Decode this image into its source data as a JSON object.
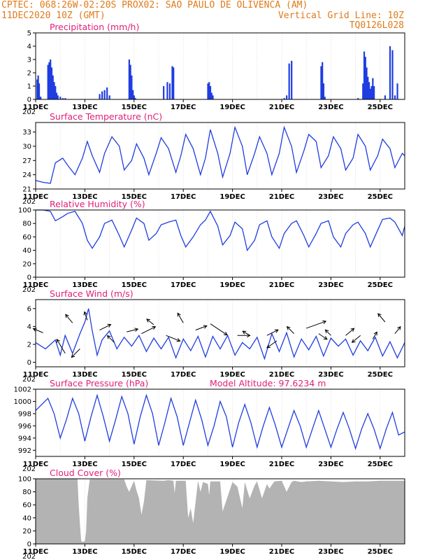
{
  "header": {
    "left_line1": "CPTEC:   068:26W-02:20S   PROX02: SAO PAULO DE OLIVENCA (AM)",
    "left_line2": "11DEC2020 10Z (GMT)",
    "right_line2": "Vertical Grid Line: 10Z",
    "right_line3": "TQ0126L028"
  },
  "x_axis": {
    "ticks": [
      "11DEC",
      "13DEC",
      "15DEC",
      "17DEC",
      "19DEC",
      "21DEC",
      "23DEC",
      "25DEC"
    ],
    "range_days": [
      0,
      15
    ],
    "year_fragment": "202"
  },
  "colors": {
    "line": "#1f3de0",
    "bar": "#1f3de0",
    "cloud": "#b3b3b3",
    "title": "#e0207a",
    "header": "#e07a1a"
  },
  "chart_data": [
    {
      "id": "precip",
      "type": "bar",
      "title": "Precipitation (mm/h)",
      "annotation": "",
      "ylim": [
        0,
        5
      ],
      "yticks": [
        "0",
        "1",
        "2",
        "3",
        "4",
        "5"
      ],
      "x_unit": "days since 11DEC2020 10Z",
      "x": [
        0.06,
        0.1,
        0.14,
        0.2,
        0.5,
        0.55,
        0.6,
        0.65,
        0.7,
        0.75,
        0.8,
        0.85,
        0.9,
        1.0,
        1.1,
        1.2,
        2.6,
        2.7,
        2.8,
        2.9,
        3.0,
        3.8,
        3.85,
        3.9,
        3.95,
        4.0,
        4.05,
        5.2,
        5.35,
        5.45,
        5.55,
        5.6,
        7.0,
        7.05,
        7.1,
        7.15,
        7.2,
        10.1,
        10.2,
        10.3,
        10.4,
        11.6,
        11.65,
        11.7,
        11.75,
        13.1,
        13.3,
        13.35,
        13.4,
        13.45,
        13.5,
        13.55,
        13.6,
        13.65,
        13.7,
        13.75,
        14.2,
        14.4,
        14.5,
        14.6,
        14.7
      ],
      "values": [
        1.5,
        1.8,
        1.2,
        0.2,
        2.6,
        2.8,
        3.0,
        2.4,
        1.8,
        1.3,
        1.0,
        0.5,
        0.3,
        0.2,
        0.1,
        0.1,
        0.4,
        0.6,
        0.7,
        0.9,
        0.3,
        3.0,
        2.6,
        1.8,
        0.7,
        0.3,
        0.1,
        1.0,
        1.3,
        1.2,
        2.5,
        2.4,
        1.2,
        1.3,
        1.0,
        0.5,
        0.3,
        0.1,
        0.3,
        2.7,
        2.9,
        2.5,
        2.8,
        1.2,
        0.2,
        0.1,
        1.2,
        3.6,
        3.2,
        2.4,
        1.7,
        1.3,
        0.8,
        1.0,
        1.6,
        1.0,
        0.3,
        4.0,
        3.7,
        0.3,
        1.2
      ]
    },
    {
      "id": "temp",
      "type": "line",
      "title": "Surface Temperature (nC)",
      "annotation": "",
      "ylim": [
        21,
        35
      ],
      "yticks": [
        "21",
        "24",
        "27",
        "30",
        "33"
      ],
      "x_unit": "days since 11DEC2020 10Z",
      "x": [
        0,
        0.3,
        0.6,
        0.8,
        1.1,
        1.3,
        1.6,
        1.9,
        2.1,
        2.3,
        2.6,
        2.8,
        3.1,
        3.4,
        3.6,
        3.9,
        4.1,
        4.4,
        4.6,
        4.9,
        5.1,
        5.4,
        5.7,
        5.9,
        6.1,
        6.4,
        6.7,
        6.9,
        7.1,
        7.4,
        7.6,
        7.9,
        8.1,
        8.4,
        8.6,
        8.9,
        9.1,
        9.4,
        9.6,
        9.9,
        10.1,
        10.4,
        10.6,
        10.9,
        11.1,
        11.4,
        11.6,
        11.9,
        12.1,
        12.4,
        12.6,
        12.9,
        13.1,
        13.4,
        13.6,
        13.9,
        14.1,
        14.4,
        14.6,
        14.9,
        15
      ],
      "values": [
        22.8,
        22.4,
        22.2,
        26.5,
        27.5,
        26.0,
        24.0,
        27.5,
        31.0,
        28.0,
        24.5,
        28.5,
        32.0,
        30.0,
        25.0,
        27.0,
        30.5,
        27.5,
        24.0,
        28.5,
        31.8,
        29.5,
        24.5,
        28.0,
        32.5,
        29.5,
        24.0,
        27.5,
        33.5,
        28.5,
        23.5,
        28.5,
        34.0,
        30.0,
        24.0,
        28.5,
        32.0,
        28.5,
        24.0,
        28.5,
        34.0,
        30.0,
        24.5,
        29.0,
        32.5,
        31.0,
        25.5,
        28.0,
        32.0,
        29.5,
        25.0,
        27.5,
        32.5,
        30.0,
        25.0,
        28.0,
        31.5,
        29.5,
        25.5,
        28.5,
        28.0
      ]
    },
    {
      "id": "rh",
      "type": "line",
      "title": "Relative Humidity (%)",
      "annotation": "",
      "ylim": [
        0,
        100
      ],
      "yticks": [
        "0",
        "20",
        "40",
        "60",
        "80",
        "100"
      ],
      "x_unit": "days since 11DEC2020 10Z",
      "x": [
        0,
        0.3,
        0.6,
        0.8,
        1.1,
        1.3,
        1.6,
        1.9,
        2.1,
        2.3,
        2.6,
        2.8,
        3.1,
        3.4,
        3.6,
        3.9,
        4.1,
        4.4,
        4.6,
        4.9,
        5.1,
        5.4,
        5.7,
        5.9,
        6.1,
        6.4,
        6.7,
        6.9,
        7.1,
        7.4,
        7.6,
        7.9,
        8.1,
        8.4,
        8.6,
        8.9,
        9.1,
        9.4,
        9.6,
        9.9,
        10.1,
        10.4,
        10.6,
        10.9,
        11.1,
        11.4,
        11.6,
        11.9,
        12.1,
        12.4,
        12.6,
        12.9,
        13.1,
        13.4,
        13.6,
        13.9,
        14.1,
        14.4,
        14.6,
        14.9,
        15
      ],
      "values": [
        100,
        100,
        98,
        84,
        90,
        95,
        98,
        80,
        55,
        43,
        60,
        80,
        85,
        62,
        45,
        70,
        88,
        80,
        55,
        65,
        78,
        82,
        85,
        62,
        45,
        60,
        78,
        85,
        98,
        76,
        48,
        62,
        82,
        72,
        40,
        55,
        78,
        84,
        60,
        43,
        65,
        80,
        84,
        62,
        45,
        65,
        80,
        84,
        60,
        45,
        65,
        78,
        82,
        65,
        45,
        70,
        86,
        88,
        82,
        62,
        76
      ]
    },
    {
      "id": "wind",
      "type": "line",
      "title": "Surface Wind (m/s)",
      "annotation": "",
      "ylim": [
        -0.5,
        7
      ],
      "yticks": [
        "0",
        "2",
        "4",
        "6"
      ],
      "x_unit": "days since 11DEC2020 10Z",
      "x": [
        0,
        0.4,
        0.8,
        1.0,
        1.2,
        1.5,
        1.8,
        2.0,
        2.15,
        2.3,
        2.5,
        2.7,
        3.0,
        3.3,
        3.6,
        3.9,
        4.2,
        4.5,
        4.8,
        5.1,
        5.4,
        5.7,
        6.0,
        6.3,
        6.6,
        6.9,
        7.2,
        7.5,
        7.8,
        8.1,
        8.4,
        8.7,
        9.0,
        9.3,
        9.6,
        9.9,
        10.2,
        10.5,
        10.8,
        11.1,
        11.4,
        11.7,
        12.0,
        12.3,
        12.6,
        12.9,
        13.2,
        13.5,
        13.8,
        14.1,
        14.4,
        14.7,
        15
      ],
      "values": [
        2.2,
        1.5,
        2.5,
        0.8,
        3.0,
        1.0,
        3.2,
        4.5,
        6.0,
        3.5,
        0.8,
        2.5,
        3.5,
        1.5,
        2.8,
        1.8,
        3.0,
        1.2,
        2.7,
        1.5,
        2.8,
        0.5,
        2.6,
        1.3,
        2.9,
        0.6,
        2.9,
        1.5,
        3.0,
        0.8,
        2.2,
        1.5,
        2.8,
        0.4,
        3.2,
        1.2,
        3.3,
        0.6,
        2.6,
        1.4,
        2.9,
        0.7,
        2.7,
        1.8,
        2.6,
        0.8,
        2.4,
        1.3,
        2.8,
        0.7,
        2.3,
        0.5,
        2.2
      ],
      "arrows": [
        {
          "x": 0.3,
          "y": 3.3,
          "dx": -14,
          "dy": -6
        },
        {
          "x": 1.2,
          "y": 1.0,
          "dx": -12,
          "dy": -20
        },
        {
          "x": 1.5,
          "y": 4.4,
          "dx": -10,
          "dy": -12
        },
        {
          "x": 1.8,
          "y": 1.5,
          "dx": -12,
          "dy": 12
        },
        {
          "x": 2.1,
          "y": 4.7,
          "dx": -4,
          "dy": -12
        },
        {
          "x": 2.6,
          "y": 3.6,
          "dx": 16,
          "dy": -8
        },
        {
          "x": 3.2,
          "y": 2.2,
          "dx": -10,
          "dy": -10
        },
        {
          "x": 3.7,
          "y": 3.4,
          "dx": 16,
          "dy": -4
        },
        {
          "x": 4.3,
          "y": 3.2,
          "dx": 20,
          "dy": -10
        },
        {
          "x": 4.8,
          "y": 4.2,
          "dx": -10,
          "dy": -8
        },
        {
          "x": 5.3,
          "y": 3.0,
          "dx": 20,
          "dy": 8
        },
        {
          "x": 6.0,
          "y": 4.4,
          "dx": -8,
          "dy": -14
        },
        {
          "x": 6.5,
          "y": 3.6,
          "dx": 16,
          "dy": -6
        },
        {
          "x": 7.1,
          "y": 4.3,
          "dx": 24,
          "dy": 16
        },
        {
          "x": 8.2,
          "y": 3.0,
          "dx": 18,
          "dy": 0
        },
        {
          "x": 8.7,
          "y": 3.0,
          "dx": -10,
          "dy": -6
        },
        {
          "x": 9.4,
          "y": 3.0,
          "dx": 16,
          "dy": -8
        },
        {
          "x": 9.8,
          "y": 2.4,
          "dx": -14,
          "dy": 10
        },
        {
          "x": 10.5,
          "y": 3.2,
          "dx": -10,
          "dy": -10
        },
        {
          "x": 11.0,
          "y": 3.8,
          "dx": 28,
          "dy": -10
        },
        {
          "x": 11.5,
          "y": 3.2,
          "dx": 12,
          "dy": 8
        },
        {
          "x": 12.0,
          "y": 3.0,
          "dx": -8,
          "dy": -8
        },
        {
          "x": 12.6,
          "y": 3.0,
          "dx": 12,
          "dy": -10
        },
        {
          "x": 13.2,
          "y": 3.0,
          "dx": -12,
          "dy": 10
        },
        {
          "x": 13.7,
          "y": 2.6,
          "dx": 6,
          "dy": -10
        },
        {
          "x": 14.2,
          "y": 4.5,
          "dx": -10,
          "dy": -12
        },
        {
          "x": 14.6,
          "y": 3.2,
          "dx": 8,
          "dy": -10
        }
      ]
    },
    {
      "id": "pres",
      "type": "line",
      "title": "Surface Pressure (hPa)",
      "annotation": "Model Altitude: 97.6234 m",
      "ylim": [
        991,
        1002
      ],
      "yticks": [
        "992",
        "994",
        "996",
        "998",
        "1000",
        "1002"
      ],
      "x_unit": "days since 11DEC2020 10Z",
      "x": [
        0,
        0.25,
        0.5,
        0.75,
        1.0,
        1.25,
        1.5,
        1.75,
        2.0,
        2.25,
        2.5,
        2.75,
        3.0,
        3.25,
        3.5,
        3.75,
        4.0,
        4.25,
        4.5,
        4.75,
        5.0,
        5.25,
        5.5,
        5.75,
        6.0,
        6.25,
        6.5,
        6.75,
        7.0,
        7.25,
        7.5,
        7.75,
        8.0,
        8.25,
        8.5,
        8.75,
        9.0,
        9.25,
        9.5,
        9.75,
        10.0,
        10.25,
        10.5,
        10.75,
        11.0,
        11.25,
        11.5,
        11.75,
        12.0,
        12.25,
        12.5,
        12.75,
        13.0,
        13.25,
        13.5,
        13.75,
        14.0,
        14.25,
        14.5,
        14.75,
        15
      ],
      "values": [
        998.5,
        999.5,
        1000.5,
        998.0,
        994.0,
        997.0,
        1000.5,
        998.0,
        993.5,
        997.5,
        1001.0,
        997.5,
        993.5,
        997.0,
        1000.8,
        998.0,
        993.0,
        997.5,
        1001.0,
        998.0,
        992.8,
        996.5,
        1000.5,
        997.5,
        992.8,
        996.5,
        1000.2,
        997.0,
        992.8,
        996.0,
        1000.0,
        997.5,
        992.5,
        996.5,
        999.5,
        996.5,
        992.5,
        996.0,
        999.0,
        996.0,
        992.5,
        995.5,
        998.5,
        996.0,
        992.5,
        995.5,
        998.5,
        995.5,
        992.5,
        995.5,
        998.2,
        995.5,
        992.3,
        995.5,
        998.0,
        995.5,
        992.3,
        995.5,
        998.2,
        994.5,
        995.0
      ]
    },
    {
      "id": "cloud",
      "type": "area",
      "title": "Cloud Cover (%)",
      "annotation": "",
      "ylim": [
        0,
        100
      ],
      "yticks": [
        "0",
        "20",
        "40",
        "60",
        "80",
        "100"
      ],
      "x_unit": "days since 11DEC2020 10Z",
      "x": [
        0,
        1.7,
        1.75,
        1.8,
        1.85,
        1.9,
        2.0,
        2.05,
        2.1,
        2.2,
        3.6,
        3.7,
        3.8,
        4.0,
        4.1,
        4.2,
        4.3,
        4.4,
        4.5,
        5.2,
        5.4,
        5.6,
        5.65,
        5.7,
        6.1,
        6.2,
        6.3,
        6.4,
        6.6,
        6.7,
        6.8,
        7.0,
        7.05,
        7.1,
        7.5,
        7.6,
        8.0,
        8.2,
        8.4,
        8.5,
        8.7,
        8.9,
        9.0,
        9.2,
        9.4,
        9.5,
        9.7,
        10.0,
        10.2,
        10.4,
        10.5,
        10.8,
        11.0,
        11.5,
        12.0,
        12.5,
        13.0,
        13.5,
        14.0,
        14.5,
        15
      ],
      "values": [
        100,
        100,
        60,
        30,
        5,
        3,
        4,
        20,
        70,
        99,
        99,
        88,
        80,
        97,
        82,
        70,
        45,
        65,
        98,
        97,
        98,
        97,
        78,
        97,
        97,
        40,
        55,
        32,
        97,
        80,
        95,
        92,
        75,
        96,
        96,
        50,
        95,
        88,
        55,
        95,
        70,
        90,
        96,
        70,
        92,
        85,
        96,
        97,
        80,
        95,
        97,
        95,
        96,
        97,
        96,
        95,
        96,
        96,
        97,
        97,
        97
      ]
    }
  ]
}
